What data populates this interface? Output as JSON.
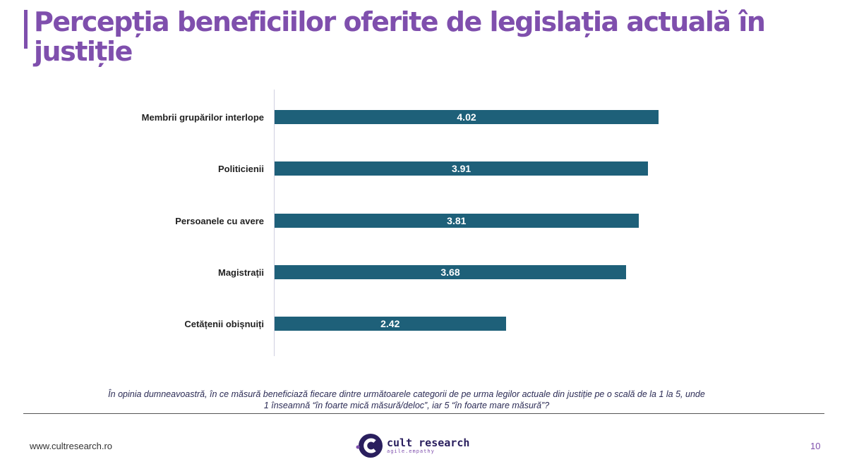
{
  "title": "Percepția beneficiilor oferite de legislația actuală în justiție",
  "chart_data": {
    "type": "bar",
    "orientation": "horizontal",
    "categories": [
      "Membrii grupărilor interlope",
      "Politicienii",
      "Persoanele cu avere",
      "Magistrații",
      "Cetățenii obișnuiți"
    ],
    "values": [
      4.02,
      3.91,
      3.81,
      3.68,
      2.42
    ],
    "value_labels": [
      "4.02",
      "3.91",
      "3.81",
      "3.68",
      "2.42"
    ],
    "xlim": [
      0,
      4.5
    ],
    "bar_color": "#1e6079",
    "grid": false
  },
  "question": "În opinia dumneavoastră, în ce măsură beneficiază fiecare dintre următoarele categorii de pe urma legilor actuale din justiție pe o scală de la 1 la 5, unde 1 înseamnă “în foarte mică măsură/deloc”, iar 5 “în foarte mare măsură”?",
  "footer": {
    "url": "www.cultresearch.ro",
    "page": "10",
    "logo_name": "cult research",
    "logo_tag": "agile.empathy"
  }
}
